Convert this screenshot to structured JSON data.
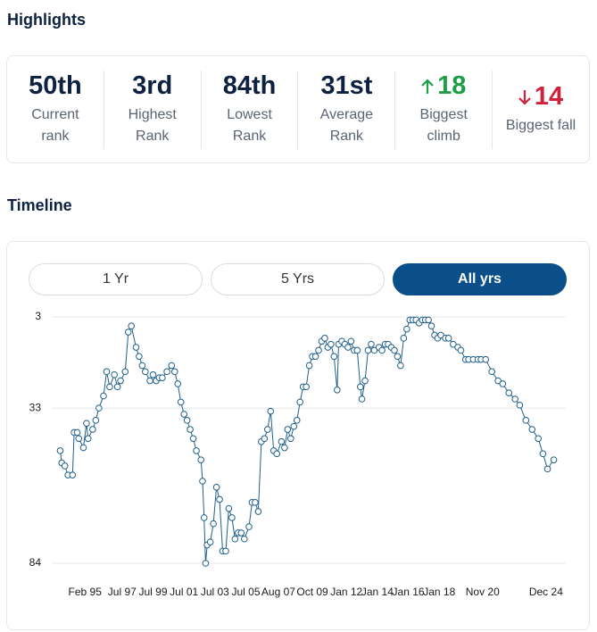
{
  "highlights": {
    "title": "Highlights",
    "items": [
      {
        "value": "50th",
        "label": "Current rank"
      },
      {
        "value": "3rd",
        "label": "Highest Rank"
      },
      {
        "value": "84th",
        "label": "Lowest Rank"
      },
      {
        "value": "31st",
        "label": "Average Rank"
      },
      {
        "value": "18",
        "label": "Biggest climb"
      },
      {
        "value": "14",
        "label": "Biggest fall"
      }
    ]
  },
  "timeline": {
    "title": "Timeline",
    "buttons": [
      "1 Yr",
      "5 Yrs",
      "All yrs"
    ]
  },
  "chart_data": {
    "type": "line",
    "color": "#1f5f8b",
    "grid": true,
    "ylim": [
      84,
      3
    ],
    "yticks": [
      3,
      33,
      84
    ],
    "xlim": [
      1993.3,
      2025.6
    ],
    "xticks": [
      {
        "value": 1995.1,
        "label": "Feb 95"
      },
      {
        "value": 1997.5,
        "label": "Jul 97"
      },
      {
        "value": 1999.5,
        "label": "Jul 99"
      },
      {
        "value": 2001.5,
        "label": "Jul 01"
      },
      {
        "value": 2003.5,
        "label": "Jul 03"
      },
      {
        "value": 2005.5,
        "label": "Jul 05"
      },
      {
        "value": 2007.6,
        "label": "Aug 07"
      },
      {
        "value": 2009.8,
        "label": "Oct 09"
      },
      {
        "value": 2012.0,
        "label": "Jan 12"
      },
      {
        "value": 2014.0,
        "label": "Jan 14"
      },
      {
        "value": 2016.0,
        "label": "Jan 16"
      },
      {
        "value": 2018.0,
        "label": "Jan 18"
      },
      {
        "value": 2020.8,
        "label": "Nov 20"
      },
      {
        "value": 2024.9,
        "label": "Dec 24"
      }
    ],
    "x": [
      1993.5,
      1993.6,
      1993.8,
      1994.0,
      1994.3,
      1994.4,
      1994.6,
      1994.7,
      1995.0,
      1995.2,
      1995.3,
      1995.6,
      1995.8,
      1996.0,
      1996.3,
      1996.5,
      1996.7,
      1997.0,
      1997.2,
      1997.4,
      1997.7,
      1997.9,
      1998.1,
      1998.4,
      1998.6,
      1998.8,
      1999.0,
      1999.3,
      1999.5,
      1999.7,
      1999.9,
      2000.1,
      2000.4,
      2000.7,
      2000.9,
      2001.1,
      2001.3,
      2001.5,
      2001.7,
      2001.9,
      2002.1,
      2002.3,
      2002.6,
      2002.7,
      2002.8,
      2002.9,
      2003.0,
      2003.2,
      2003.4,
      2003.6,
      2003.8,
      2004.0,
      2004.2,
      2004.4,
      2004.6,
      2004.8,
      2005.0,
      2005.2,
      2005.4,
      2005.7,
      2005.9,
      2006.1,
      2006.3,
      2006.5,
      2006.7,
      2006.9,
      2007.1,
      2007.3,
      2007.5,
      2007.8,
      2008.0,
      2008.2,
      2008.4,
      2008.6,
      2008.8,
      2009.0,
      2009.2,
      2009.4,
      2009.6,
      2009.8,
      2010.0,
      2010.2,
      2010.4,
      2010.6,
      2010.8,
      2011.0,
      2011.2,
      2011.4,
      2011.5,
      2011.7,
      2011.9,
      2012.1,
      2012.3,
      2012.5,
      2012.7,
      2012.9,
      2013.0,
      2013.2,
      2013.4,
      2013.6,
      2013.8,
      2014.1,
      2014.3,
      2014.5,
      2014.7,
      2014.9,
      2015.1,
      2015.3,
      2015.5,
      2015.7,
      2015.9,
      2016.1,
      2016.3,
      2016.5,
      2016.7,
      2016.9,
      2017.1,
      2017.3,
      2017.5,
      2017.7,
      2017.9,
      2018.1,
      2018.4,
      2018.6,
      2018.9,
      2019.2,
      2019.4,
      2019.7,
      2019.9,
      2020.2,
      2020.5,
      2020.7,
      2021.0,
      2021.4,
      2021.8,
      2022.1,
      2022.5,
      2022.9,
      2023.2,
      2023.6,
      2024.0,
      2024.4,
      2024.7,
      2025.0,
      2025.4
    ],
    "values": [
      47,
      51,
      52,
      55,
      55,
      41,
      41,
      43,
      46,
      38,
      43,
      40,
      37,
      33,
      29,
      21,
      26,
      22,
      26,
      24,
      21,
      8,
      6,
      13,
      16,
      19,
      21,
      24,
      22,
      24,
      23,
      23,
      21,
      19,
      21,
      25,
      31,
      35,
      37,
      40,
      43,
      47,
      50,
      57,
      69,
      84,
      78,
      77,
      71,
      59,
      63,
      80,
      80,
      66,
      69,
      76,
      74,
      74,
      76,
      72,
      64,
      64,
      67,
      44,
      43,
      40,
      34,
      47,
      48,
      44,
      46,
      40,
      43,
      39,
      37,
      31,
      26,
      26,
      19,
      16,
      16,
      14,
      11,
      10,
      13,
      12,
      16,
      27,
      12,
      11,
      12,
      13,
      11,
      14,
      14,
      26,
      30,
      24,
      14,
      12,
      14,
      13,
      14,
      12,
      12,
      13,
      14,
      16,
      19,
      10,
      7,
      4,
      4,
      4,
      5,
      4,
      4,
      4,
      6,
      9,
      10,
      9,
      10,
      10,
      12,
      13,
      14,
      17,
      17,
      17,
      17,
      17,
      17,
      21,
      24,
      25,
      28,
      30,
      32,
      37,
      40,
      43,
      48,
      53,
      50
    ]
  }
}
